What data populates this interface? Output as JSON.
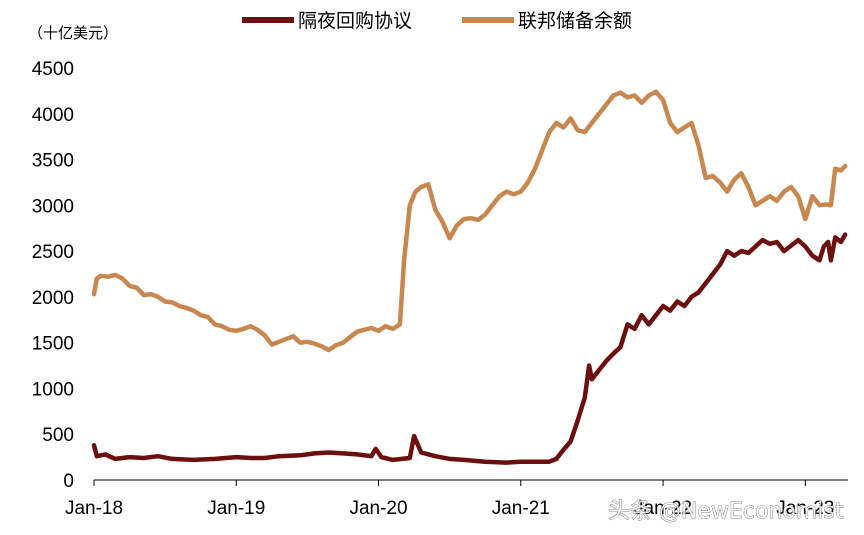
{
  "chart_data": {
    "type": "line",
    "unit_label": "（十亿美元）",
    "ylim": [
      0,
      4500
    ],
    "yticks": [
      0,
      500,
      1000,
      1500,
      2000,
      2500,
      3000,
      3500,
      4000,
      4500
    ],
    "xticks": [
      "Jan-18",
      "Jan-19",
      "Jan-20",
      "Jan-21",
      "Jan-22",
      "Jan-23"
    ],
    "xrange": [
      2018.0,
      2023.3
    ],
    "legend_position": "top",
    "series": [
      {
        "name": "隔夜回购协议",
        "color": "#6b0f0f",
        "points": [
          [
            2018.0,
            380
          ],
          [
            2018.02,
            260
          ],
          [
            2018.08,
            280
          ],
          [
            2018.15,
            230
          ],
          [
            2018.25,
            250
          ],
          [
            2018.35,
            240
          ],
          [
            2018.45,
            260
          ],
          [
            2018.55,
            230
          ],
          [
            2018.7,
            220
          ],
          [
            2018.85,
            230
          ],
          [
            2019.0,
            250
          ],
          [
            2019.1,
            240
          ],
          [
            2019.2,
            240
          ],
          [
            2019.3,
            260
          ],
          [
            2019.45,
            270
          ],
          [
            2019.55,
            290
          ],
          [
            2019.65,
            300
          ],
          [
            2019.75,
            290
          ],
          [
            2019.85,
            280
          ],
          [
            2019.95,
            260
          ],
          [
            2019.98,
            340
          ],
          [
            2020.02,
            250
          ],
          [
            2020.1,
            220
          ],
          [
            2020.22,
            240
          ],
          [
            2020.25,
            480
          ],
          [
            2020.3,
            300
          ],
          [
            2020.4,
            260
          ],
          [
            2020.5,
            230
          ],
          [
            2020.6,
            220
          ],
          [
            2020.75,
            200
          ],
          [
            2020.9,
            190
          ],
          [
            2021.0,
            200
          ],
          [
            2021.1,
            200
          ],
          [
            2021.2,
            200
          ],
          [
            2021.25,
            230
          ],
          [
            2021.3,
            330
          ],
          [
            2021.35,
            420
          ],
          [
            2021.4,
            650
          ],
          [
            2021.45,
            900
          ],
          [
            2021.48,
            1250
          ],
          [
            2021.5,
            1100
          ],
          [
            2021.55,
            1200
          ],
          [
            2021.6,
            1300
          ],
          [
            2021.65,
            1380
          ],
          [
            2021.7,
            1450
          ],
          [
            2021.75,
            1700
          ],
          [
            2021.8,
            1650
          ],
          [
            2021.85,
            1800
          ],
          [
            2021.9,
            1700
          ],
          [
            2021.95,
            1800
          ],
          [
            2022.0,
            1900
          ],
          [
            2022.05,
            1850
          ],
          [
            2022.1,
            1950
          ],
          [
            2022.15,
            1900
          ],
          [
            2022.2,
            2000
          ],
          [
            2022.25,
            2050
          ],
          [
            2022.3,
            2150
          ],
          [
            2022.35,
            2250
          ],
          [
            2022.4,
            2350
          ],
          [
            2022.45,
            2500
          ],
          [
            2022.5,
            2450
          ],
          [
            2022.55,
            2500
          ],
          [
            2022.6,
            2480
          ],
          [
            2022.65,
            2550
          ],
          [
            2022.7,
            2620
          ],
          [
            2022.75,
            2580
          ],
          [
            2022.8,
            2600
          ],
          [
            2022.85,
            2500
          ],
          [
            2022.9,
            2560
          ],
          [
            2022.95,
            2620
          ],
          [
            2023.0,
            2550
          ],
          [
            2023.05,
            2450
          ],
          [
            2023.1,
            2400
          ],
          [
            2023.13,
            2550
          ],
          [
            2023.16,
            2600
          ],
          [
            2023.18,
            2400
          ],
          [
            2023.21,
            2650
          ],
          [
            2023.25,
            2600
          ],
          [
            2023.28,
            2680
          ]
        ]
      },
      {
        "name": "联邦储备余额",
        "color": "#c8874e",
        "points": [
          [
            2018.0,
            2030
          ],
          [
            2018.02,
            2200
          ],
          [
            2018.05,
            2230
          ],
          [
            2018.1,
            2220
          ],
          [
            2018.15,
            2240
          ],
          [
            2018.2,
            2200
          ],
          [
            2018.25,
            2120
          ],
          [
            2018.3,
            2100
          ],
          [
            2018.35,
            2020
          ],
          [
            2018.4,
            2030
          ],
          [
            2018.45,
            2000
          ],
          [
            2018.5,
            1950
          ],
          [
            2018.55,
            1940
          ],
          [
            2018.6,
            1900
          ],
          [
            2018.65,
            1880
          ],
          [
            2018.7,
            1850
          ],
          [
            2018.75,
            1800
          ],
          [
            2018.8,
            1780
          ],
          [
            2018.85,
            1700
          ],
          [
            2018.9,
            1680
          ],
          [
            2018.95,
            1640
          ],
          [
            2019.0,
            1630
          ],
          [
            2019.05,
            1650
          ],
          [
            2019.1,
            1680
          ],
          [
            2019.15,
            1640
          ],
          [
            2019.2,
            1580
          ],
          [
            2019.25,
            1480
          ],
          [
            2019.3,
            1510
          ],
          [
            2019.35,
            1540
          ],
          [
            2019.4,
            1570
          ],
          [
            2019.45,
            1500
          ],
          [
            2019.5,
            1510
          ],
          [
            2019.55,
            1490
          ],
          [
            2019.6,
            1460
          ],
          [
            2019.65,
            1420
          ],
          [
            2019.7,
            1470
          ],
          [
            2019.75,
            1500
          ],
          [
            2019.8,
            1560
          ],
          [
            2019.85,
            1620
          ],
          [
            2019.9,
            1640
          ],
          [
            2019.95,
            1660
          ],
          [
            2020.0,
            1630
          ],
          [
            2020.05,
            1680
          ],
          [
            2020.1,
            1650
          ],
          [
            2020.15,
            1700
          ],
          [
            2020.18,
            2400
          ],
          [
            2020.22,
            3000
          ],
          [
            2020.26,
            3150
          ],
          [
            2020.3,
            3200
          ],
          [
            2020.35,
            3230
          ],
          [
            2020.4,
            2950
          ],
          [
            2020.45,
            2820
          ],
          [
            2020.5,
            2640
          ],
          [
            2020.55,
            2780
          ],
          [
            2020.6,
            2850
          ],
          [
            2020.65,
            2860
          ],
          [
            2020.7,
            2840
          ],
          [
            2020.75,
            2900
          ],
          [
            2020.8,
            3000
          ],
          [
            2020.85,
            3100
          ],
          [
            2020.9,
            3150
          ],
          [
            2020.95,
            3120
          ],
          [
            2021.0,
            3150
          ],
          [
            2021.05,
            3250
          ],
          [
            2021.1,
            3400
          ],
          [
            2021.15,
            3600
          ],
          [
            2021.2,
            3800
          ],
          [
            2021.25,
            3900
          ],
          [
            2021.3,
            3850
          ],
          [
            2021.35,
            3950
          ],
          [
            2021.4,
            3820
          ],
          [
            2021.45,
            3800
          ],
          [
            2021.5,
            3900
          ],
          [
            2021.55,
            4000
          ],
          [
            2021.6,
            4100
          ],
          [
            2021.65,
            4200
          ],
          [
            2021.7,
            4230
          ],
          [
            2021.75,
            4180
          ],
          [
            2021.8,
            4200
          ],
          [
            2021.85,
            4120
          ],
          [
            2021.9,
            4200
          ],
          [
            2021.95,
            4240
          ],
          [
            2022.0,
            4150
          ],
          [
            2022.05,
            3900
          ],
          [
            2022.1,
            3800
          ],
          [
            2022.15,
            3850
          ],
          [
            2022.2,
            3900
          ],
          [
            2022.25,
            3650
          ],
          [
            2022.3,
            3300
          ],
          [
            2022.35,
            3320
          ],
          [
            2022.4,
            3250
          ],
          [
            2022.45,
            3150
          ],
          [
            2022.5,
            3280
          ],
          [
            2022.55,
            3350
          ],
          [
            2022.6,
            3200
          ],
          [
            2022.65,
            3000
          ],
          [
            2022.7,
            3050
          ],
          [
            2022.75,
            3100
          ],
          [
            2022.8,
            3050
          ],
          [
            2022.85,
            3150
          ],
          [
            2022.9,
            3200
          ],
          [
            2022.95,
            3100
          ],
          [
            2023.0,
            2850
          ],
          [
            2023.05,
            3100
          ],
          [
            2023.1,
            3000
          ],
          [
            2023.15,
            3010
          ],
          [
            2023.18,
            3000
          ],
          [
            2023.21,
            3400
          ],
          [
            2023.25,
            3380
          ],
          [
            2023.28,
            3430
          ]
        ]
      }
    ]
  },
  "watermark": "头条 @NewEconomist"
}
